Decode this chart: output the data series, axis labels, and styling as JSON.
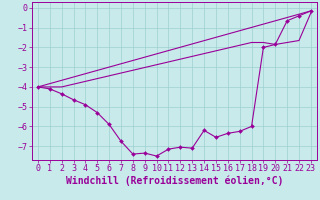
{
  "xlabel": "Windchill (Refroidissement éolien,°C)",
  "xlim": [
    -0.5,
    23.5
  ],
  "ylim": [
    -7.7,
    0.3
  ],
  "yticks": [
    0,
    -1,
    -2,
    -3,
    -4,
    -5,
    -6,
    -7
  ],
  "xticks": [
    0,
    1,
    2,
    3,
    4,
    5,
    6,
    7,
    8,
    9,
    10,
    11,
    12,
    13,
    14,
    15,
    16,
    17,
    18,
    19,
    20,
    21,
    22,
    23
  ],
  "bg_color": "#c8eaea",
  "grid_color": "#9dcfcf",
  "line_color": "#990099",
  "line1_x": [
    0,
    1,
    2,
    3,
    4,
    5,
    6,
    7,
    8,
    9,
    10,
    11,
    12,
    13,
    14,
    15,
    16,
    17,
    18,
    19,
    20,
    21,
    22,
    23
  ],
  "line1_y": [
    -4.0,
    -4.1,
    -4.35,
    -4.65,
    -4.9,
    -5.3,
    -5.9,
    -6.75,
    -7.4,
    -7.35,
    -7.5,
    -7.15,
    -7.05,
    -7.1,
    -6.2,
    -6.55,
    -6.35,
    -6.25,
    -6.0,
    -2.0,
    -1.85,
    -0.65,
    -0.4,
    -0.15
  ],
  "line2_x": [
    0,
    23
  ],
  "line2_y": [
    -4.0,
    -0.15
  ],
  "line3_x": [
    0,
    2,
    18,
    19,
    20,
    21,
    22,
    23
  ],
  "line3_y": [
    -4.0,
    -4.0,
    -1.75,
    -1.75,
    -1.85,
    -1.75,
    -1.65,
    -0.25
  ],
  "tick_fontsize": 6,
  "label_fontsize": 7
}
